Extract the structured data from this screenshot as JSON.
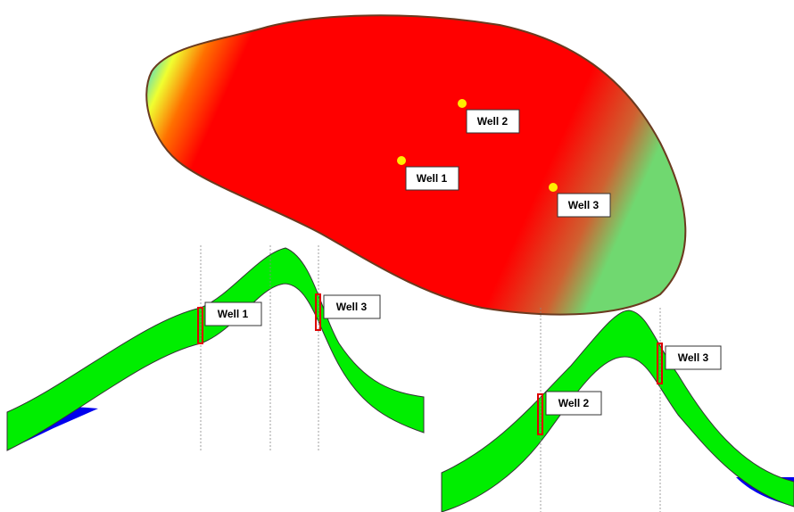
{
  "map": {
    "wells": [
      {
        "label": "Well 1"
      },
      {
        "label": "Well 2"
      },
      {
        "label": "Well 3"
      }
    ]
  },
  "sections": [
    {
      "wells": [
        {
          "label": "Well 1"
        },
        {
          "label": "Well 3"
        }
      ]
    },
    {
      "wells": [
        {
          "label": "Well 2"
        },
        {
          "label": "Well 3"
        }
      ]
    }
  ]
}
